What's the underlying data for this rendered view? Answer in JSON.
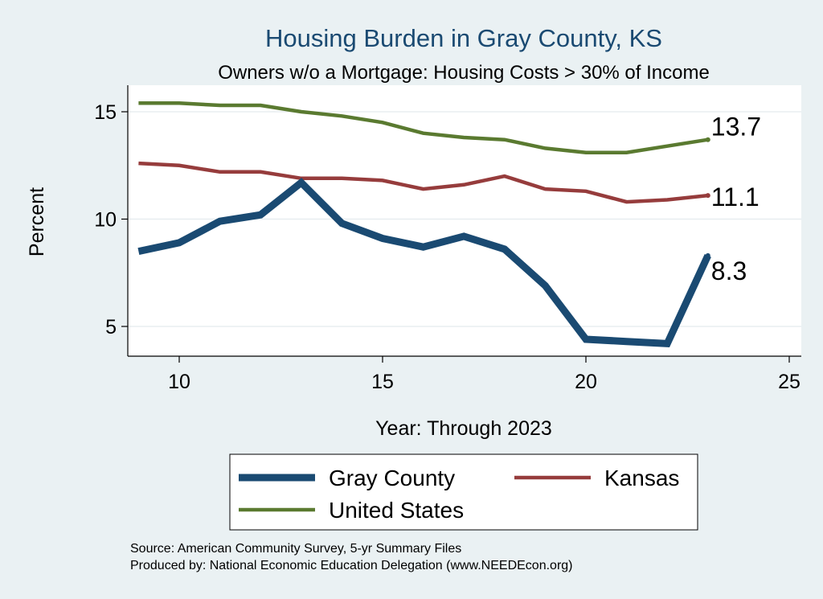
{
  "chart_data": {
    "type": "line",
    "title": "Housing Burden in Gray County, KS",
    "subtitle": "Owners w/o a Mortgage: Housing Costs > 30% of Income",
    "xlabel": "Year: Through 2023",
    "ylabel": "Percent",
    "xlim": [
      9,
      25
    ],
    "ylim": [
      3.7,
      16.2
    ],
    "xticks": [
      10,
      15,
      20,
      25
    ],
    "yticks": [
      5,
      10,
      15
    ],
    "grid": true,
    "legend_position": "bottom",
    "x": [
      9,
      10,
      11,
      12,
      13,
      14,
      15,
      16,
      17,
      18,
      19,
      20,
      21,
      22,
      23
    ],
    "series": [
      {
        "name": "Gray County",
        "color": "#1a4a72",
        "values": [
          8.5,
          8.9,
          9.9,
          10.2,
          11.7,
          9.8,
          9.1,
          8.7,
          9.2,
          8.6,
          6.9,
          4.4,
          4.3,
          4.2,
          8.3
        ],
        "end_label": "8.3"
      },
      {
        "name": "Kansas",
        "color": "#963c3c",
        "values": [
          12.6,
          12.5,
          12.2,
          12.2,
          11.9,
          11.9,
          11.8,
          11.4,
          11.6,
          12.0,
          11.4,
          11.3,
          10.8,
          10.9,
          11.1
        ],
        "end_label": "11.1"
      },
      {
        "name": "United States",
        "color": "#5a7a30",
        "values": [
          15.4,
          15.4,
          15.3,
          15.3,
          15.0,
          14.8,
          14.5,
          14.0,
          13.8,
          13.7,
          13.3,
          13.1,
          13.1,
          13.4,
          13.7
        ],
        "end_label": "13.7"
      }
    ]
  },
  "notes": {
    "source": "Source: American Community Survey, 5-yr Summary Files",
    "producer": "Produced by: National Economic Education Delegation (www.NEEDEcon.org)"
  }
}
